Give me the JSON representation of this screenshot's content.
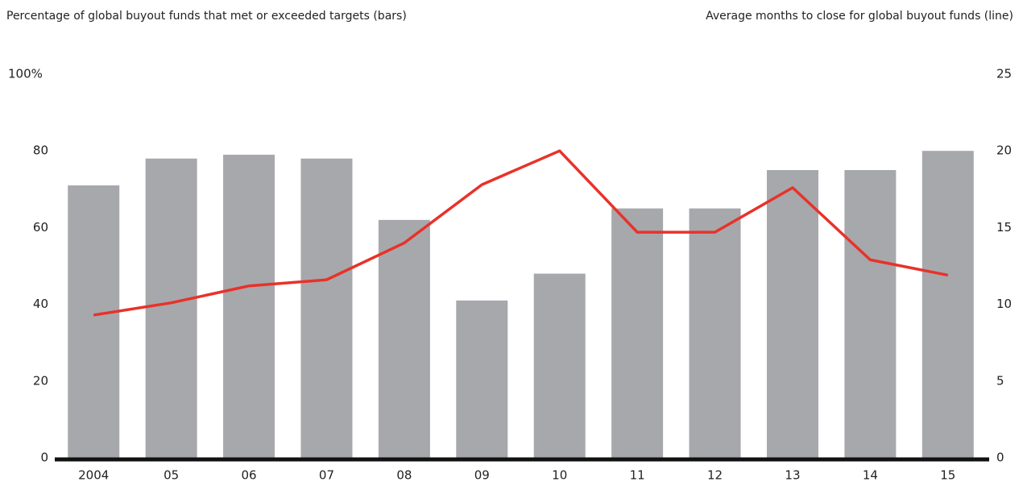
{
  "chart_data": {
    "type": "bar_line",
    "y_title": "Percentage of global buyout funds that met or exceeded targets (bars)",
    "y2_title": "Average months to close for global buyout funds (line)",
    "categories": [
      "2004",
      "05",
      "06",
      "07",
      "08",
      "09",
      "10",
      "11",
      "12",
      "13",
      "14",
      "15"
    ],
    "series": [
      {
        "type": "bar",
        "color": "#a7a8ac",
        "values": [
          71,
          78,
          79,
          78,
          62,
          41,
          48,
          65,
          65,
          75,
          75,
          80
        ]
      },
      {
        "type": "line",
        "axis": "y2",
        "color": "#e8322a",
        "values": [
          9.3,
          10.1,
          11.2,
          11.6,
          14.0,
          17.8,
          20.0,
          14.7,
          14.7,
          17.6,
          12.9,
          11.9
        ]
      }
    ],
    "ylim": [
      0,
      100
    ],
    "yticks": [
      0,
      20,
      40,
      60,
      80,
      {
        "value": 100,
        "label": "100%"
      }
    ],
    "y2lim": [
      0,
      25
    ],
    "y2ticks": [
      0,
      5,
      10,
      15,
      20,
      25
    ]
  }
}
